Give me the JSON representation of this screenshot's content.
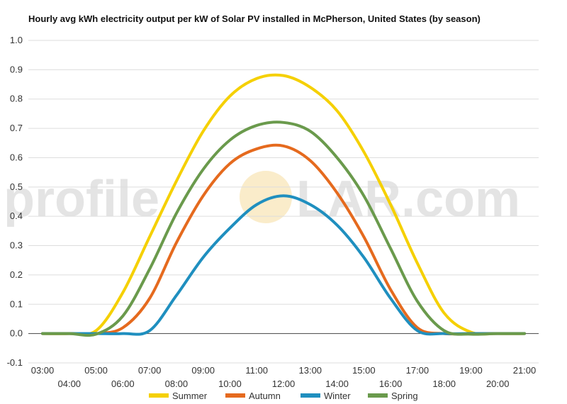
{
  "chart_data": {
    "type": "line",
    "title": "Hourly avg kWh electricity output per kW of Solar PV installed in McPherson, United States (by season)",
    "xlabel": "",
    "ylabel": "",
    "x": [
      "03:00",
      "04:00",
      "05:00",
      "06:00",
      "07:00",
      "08:00",
      "09:00",
      "10:00",
      "11:00",
      "12:00",
      "13:00",
      "14:00",
      "15:00",
      "16:00",
      "17:00",
      "18:00",
      "19:00",
      "20:00",
      "21:00"
    ],
    "ylim": [
      -0.1,
      1.0
    ],
    "yticks": [
      "-0.1",
      "0.0",
      "0.1",
      "0.2",
      "0.3",
      "0.4",
      "0.5",
      "0.6",
      "0.7",
      "0.8",
      "0.9",
      "1.0"
    ],
    "grid": true,
    "legend_position": "bottom",
    "series": [
      {
        "name": "Summer",
        "color": "#f5d000",
        "values": [
          0,
          0,
          0.01,
          0.14,
          0.33,
          0.52,
          0.69,
          0.81,
          0.87,
          0.88,
          0.84,
          0.76,
          0.62,
          0.44,
          0.24,
          0.07,
          0.005,
          0,
          0
        ]
      },
      {
        "name": "Autumn",
        "color": "#e56a1e",
        "values": [
          0,
          0,
          0,
          0.02,
          0.12,
          0.31,
          0.47,
          0.58,
          0.63,
          0.64,
          0.59,
          0.48,
          0.33,
          0.15,
          0.02,
          0,
          0,
          0,
          0
        ]
      },
      {
        "name": "Winter",
        "color": "#1f8fbf",
        "values": [
          0,
          0,
          0,
          0,
          0.01,
          0.13,
          0.26,
          0.36,
          0.44,
          0.47,
          0.44,
          0.37,
          0.26,
          0.12,
          0.01,
          0,
          0,
          0,
          0
        ]
      },
      {
        "name": "Spring",
        "color": "#6a9a4c",
        "values": [
          0,
          0,
          -0.002,
          0.06,
          0.22,
          0.41,
          0.56,
          0.66,
          0.71,
          0.72,
          0.69,
          0.6,
          0.47,
          0.29,
          0.11,
          0.01,
          -0.002,
          0,
          0
        ]
      }
    ]
  },
  "watermark": {
    "left": "profile",
    "right": "LAR.com"
  }
}
